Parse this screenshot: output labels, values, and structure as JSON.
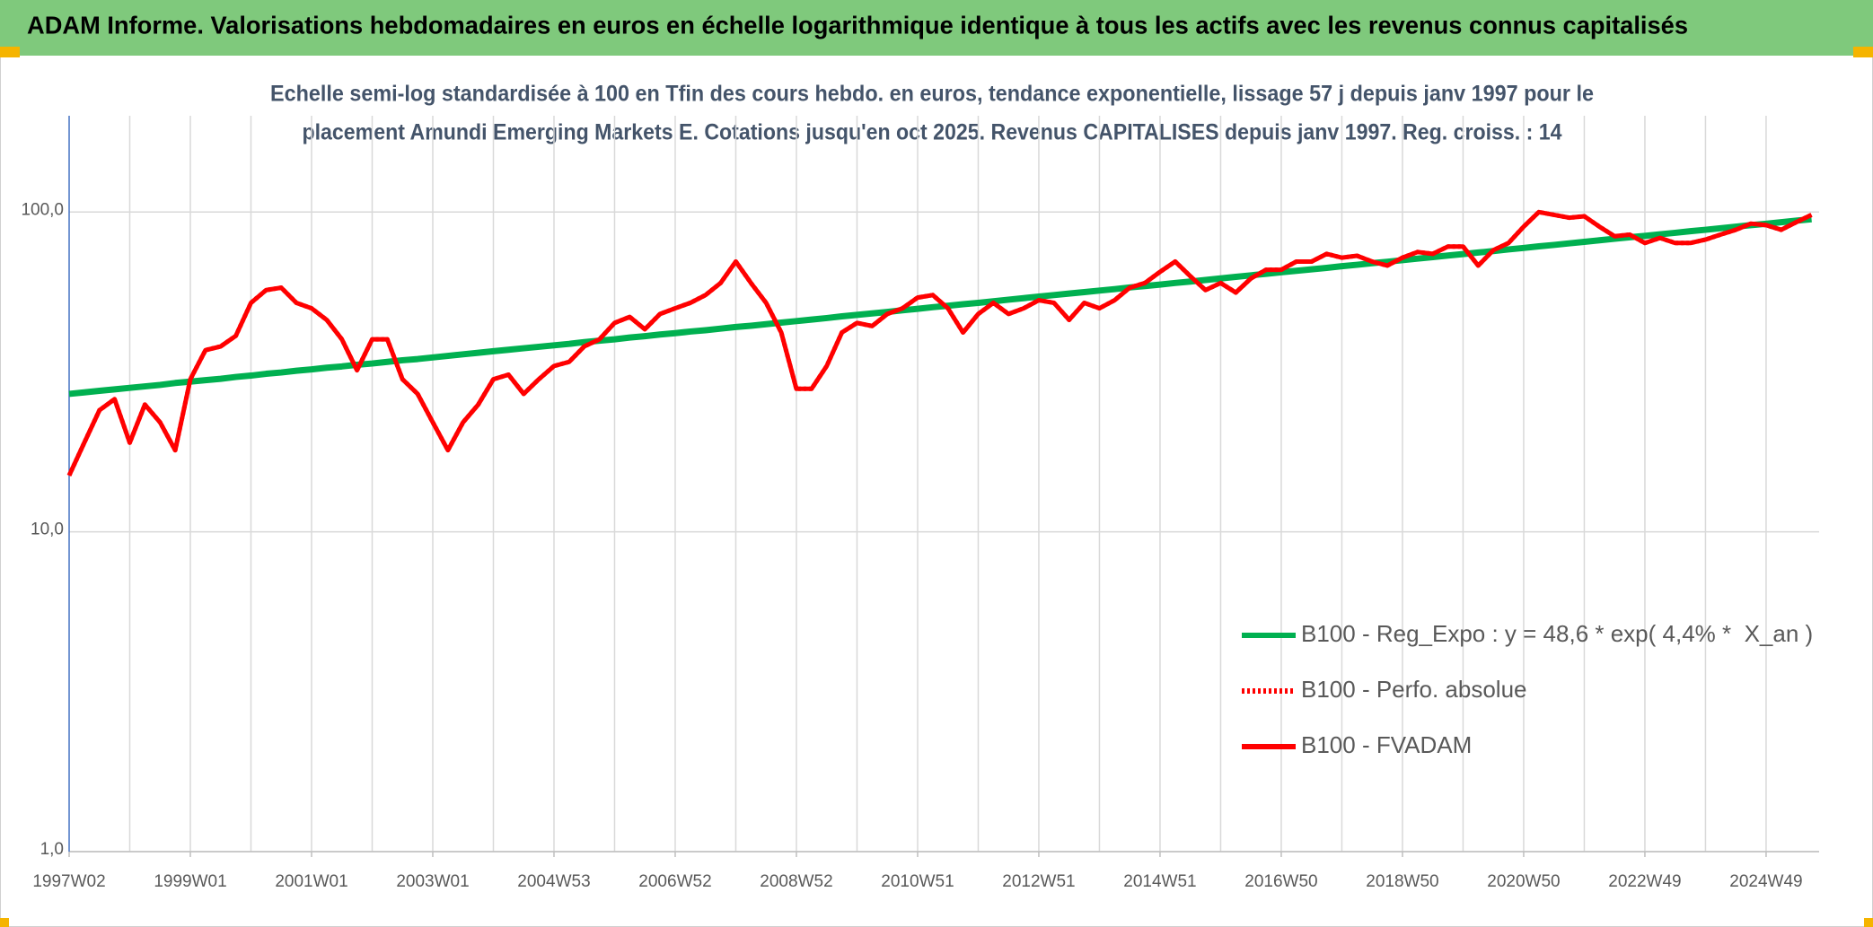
{
  "chart_data": {
    "type": "line",
    "title": "ADAM Informe. Valorisations hebdomadaires en euros en échelle logarithmique identique à tous les actifs avec les revenus connus capitalisés",
    "subtitle": [
      "Echelle semi-log standardisée à 100 en Tfin des cours hebdo. en euros, tendance exponentielle, lissage 57 j depuis janv 1997 pour le",
      "placement Amundi Emerging Markets E. Cotations jusqu'en oct 2025. Revenus CAPITALISES depuis janv 1997. Reg. croiss. : 14"
    ],
    "categories": [
      "1997W02",
      null,
      null,
      null,
      null,
      null,
      null,
      null,
      "1999W01",
      null,
      null,
      null,
      null,
      null,
      null,
      null,
      "2001W01",
      null,
      null,
      null,
      null,
      null,
      null,
      null,
      "2003W01",
      null,
      null,
      null,
      null,
      null,
      null,
      null,
      "2004W53",
      null,
      null,
      null,
      null,
      null,
      null,
      null,
      "2006W52",
      null,
      null,
      null,
      null,
      null,
      null,
      null,
      "2008W52",
      null,
      null,
      null,
      null,
      null,
      null,
      null,
      "2010W51",
      null,
      null,
      null,
      null,
      null,
      null,
      null,
      "2012W51",
      null,
      null,
      null,
      null,
      null,
      null,
      null,
      "2014W51",
      null,
      null,
      null,
      null,
      null,
      null,
      null,
      "2016W50",
      null,
      null,
      null,
      null,
      null,
      null,
      null,
      "2018W50",
      null,
      null,
      null,
      null,
      null,
      null,
      null,
      "2020W50",
      null,
      null,
      null,
      null,
      null,
      null,
      null,
      "2022W49",
      null,
      null,
      null,
      null,
      null,
      null,
      null,
      "2024W49",
      null,
      null,
      null
    ],
    "series": [
      {
        "name": "B100 - Reg_Expo : y = 48,6 * exp( 4,4% *  X_an )",
        "color": "#00b050",
        "style": "solid",
        "values": [
          27.0,
          27.3,
          27.6,
          27.9,
          28.2,
          28.5,
          28.8,
          29.2,
          29.5,
          29.8,
          30.1,
          30.5,
          30.8,
          31.2,
          31.5,
          31.9,
          32.2,
          32.6,
          32.9,
          33.3,
          33.6,
          34.0,
          34.4,
          34.7,
          35.1,
          35.5,
          35.9,
          36.3,
          36.7,
          37.1,
          37.5,
          37.9,
          38.3,
          38.7,
          39.2,
          39.6,
          40.0,
          40.5,
          40.9,
          41.4,
          41.8,
          42.3,
          42.7,
          43.2,
          43.7,
          44.1,
          44.6,
          45.1,
          45.6,
          46.1,
          46.6,
          47.2,
          47.7,
          48.2,
          48.7,
          49.3,
          49.8,
          50.4,
          50.9,
          51.5,
          52.0,
          52.6,
          53.2,
          53.8,
          54.4,
          55.0,
          55.6,
          56.2,
          56.8,
          57.4,
          58.1,
          58.7,
          59.3,
          60.0,
          60.6,
          61.3,
          62.0,
          62.7,
          63.4,
          64.1,
          64.8,
          65.5,
          66.2,
          66.9,
          67.7,
          68.4,
          69.2,
          69.9,
          70.7,
          71.5,
          72.3,
          73.1,
          73.9,
          74.7,
          75.5,
          76.4,
          77.2,
          78.1,
          78.9,
          79.8,
          80.7,
          81.6,
          82.5,
          83.4,
          84.2,
          85.2,
          86.1,
          87.1,
          88.0,
          89.0,
          90.0,
          91.0,
          91.9,
          92.9,
          94.0,
          95.0
        ]
      },
      {
        "name": "B100 - Perfo. absolue",
        "color": "#ff0000",
        "style": "dotted",
        "values": [
          15,
          19,
          24,
          26,
          19,
          25,
          22,
          18,
          30,
          37,
          38,
          41,
          52,
          57,
          58,
          52,
          50,
          46,
          40,
          32,
          40,
          40,
          30,
          27,
          22,
          18,
          22,
          25,
          30,
          31,
          27,
          30,
          33,
          34,
          38,
          40,
          45,
          47,
          43,
          48,
          50,
          52,
          55,
          60,
          70,
          60,
          52,
          42,
          28,
          28,
          33,
          42,
          45,
          44,
          48,
          50,
          54,
          55,
          50,
          42,
          48,
          52,
          48,
          50,
          53,
          52,
          46,
          52,
          50,
          53,
          58,
          60,
          65,
          70,
          63,
          57,
          60,
          56,
          62,
          66,
          66,
          70,
          70,
          74,
          72,
          73,
          70,
          68,
          72,
          75,
          74,
          78,
          78,
          68,
          76,
          80,
          90,
          100,
          98,
          96,
          97,
          90,
          84,
          85,
          80,
          83,
          80,
          80,
          82,
          85,
          88,
          92,
          91,
          88,
          93,
          98
        ]
      },
      {
        "name": "B100 - FVADAM",
        "color": "#ff0000",
        "style": "solid",
        "values": [
          15,
          19,
          24,
          26,
          19,
          25,
          22,
          18,
          30,
          37,
          38,
          41,
          52,
          57,
          58,
          52,
          50,
          46,
          40,
          32,
          40,
          40,
          30,
          27,
          22,
          18,
          22,
          25,
          30,
          31,
          27,
          30,
          33,
          34,
          38,
          40,
          45,
          47,
          43,
          48,
          50,
          52,
          55,
          60,
          70,
          60,
          52,
          42,
          28,
          28,
          33,
          42,
          45,
          44,
          48,
          50,
          54,
          55,
          50,
          42,
          48,
          52,
          48,
          50,
          53,
          52,
          46,
          52,
          50,
          53,
          58,
          60,
          65,
          70,
          63,
          57,
          60,
          56,
          62,
          66,
          66,
          70,
          70,
          74,
          72,
          73,
          70,
          68,
          72,
          75,
          74,
          78,
          78,
          68,
          76,
          80,
          90,
          100,
          98,
          96,
          97,
          90,
          84,
          85,
          80,
          83,
          80,
          80,
          82,
          85,
          88,
          92,
          91,
          88,
          93,
          98
        ]
      }
    ],
    "ylim": [
      1,
      200
    ],
    "yticks": [
      {
        "value": 1,
        "label": "1,0"
      },
      {
        "value": 10,
        "label": "10,0"
      },
      {
        "value": 100,
        "label": "100,0"
      }
    ],
    "log_scale": true,
    "grid": true,
    "legend": "lower right"
  }
}
